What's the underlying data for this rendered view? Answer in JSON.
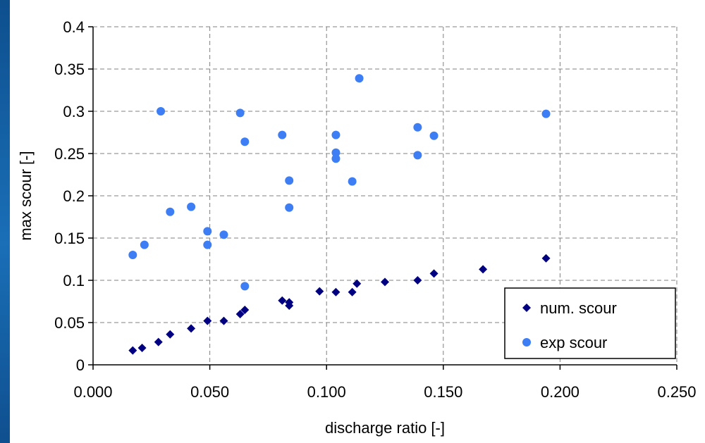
{
  "chart_data": {
    "type": "scatter",
    "title": "",
    "xlabel": "discharge ratio [-]",
    "ylabel": "max scour [-]",
    "xlim": [
      0,
      0.25
    ],
    "ylim": [
      0,
      0.4
    ],
    "xticks": [
      "0.000",
      "0.050",
      "0.100",
      "0.150",
      "0.200",
      "0.250"
    ],
    "yticks": [
      "0",
      "0.05",
      "0.1",
      "0.15",
      "0.2",
      "0.25",
      "0.3",
      "0.35",
      "0.4"
    ],
    "grid": true,
    "legend_position": "bottom-right",
    "series": [
      {
        "name": "num. scour",
        "marker": "diamond",
        "color": "#000080",
        "points": [
          [
            0.017,
            0.017
          ],
          [
            0.021,
            0.02
          ],
          [
            0.028,
            0.027
          ],
          [
            0.033,
            0.036
          ],
          [
            0.042,
            0.043
          ],
          [
            0.049,
            0.052
          ],
          [
            0.056,
            0.052
          ],
          [
            0.063,
            0.06
          ],
          [
            0.065,
            0.065
          ],
          [
            0.081,
            0.076
          ],
          [
            0.084,
            0.074
          ],
          [
            0.084,
            0.07
          ],
          [
            0.097,
            0.087
          ],
          [
            0.104,
            0.086
          ],
          [
            0.111,
            0.086
          ],
          [
            0.113,
            0.096
          ],
          [
            0.125,
            0.098
          ],
          [
            0.139,
            0.1
          ],
          [
            0.146,
            0.108
          ],
          [
            0.167,
            0.113
          ],
          [
            0.194,
            0.126
          ]
        ]
      },
      {
        "name": "exp scour",
        "marker": "circle",
        "color": "#3d7ef5",
        "points": [
          [
            0.017,
            0.13
          ],
          [
            0.022,
            0.142
          ],
          [
            0.029,
            0.3
          ],
          [
            0.033,
            0.181
          ],
          [
            0.042,
            0.187
          ],
          [
            0.049,
            0.158
          ],
          [
            0.049,
            0.142
          ],
          [
            0.056,
            0.154
          ],
          [
            0.063,
            0.298
          ],
          [
            0.065,
            0.264
          ],
          [
            0.065,
            0.093
          ],
          [
            0.081,
            0.272
          ],
          [
            0.084,
            0.218
          ],
          [
            0.084,
            0.186
          ],
          [
            0.104,
            0.272
          ],
          [
            0.104,
            0.251
          ],
          [
            0.104,
            0.244
          ],
          [
            0.111,
            0.217
          ],
          [
            0.114,
            0.339
          ],
          [
            0.139,
            0.281
          ],
          [
            0.139,
            0.248
          ],
          [
            0.146,
            0.271
          ],
          [
            0.194,
            0.297
          ]
        ]
      }
    ]
  }
}
